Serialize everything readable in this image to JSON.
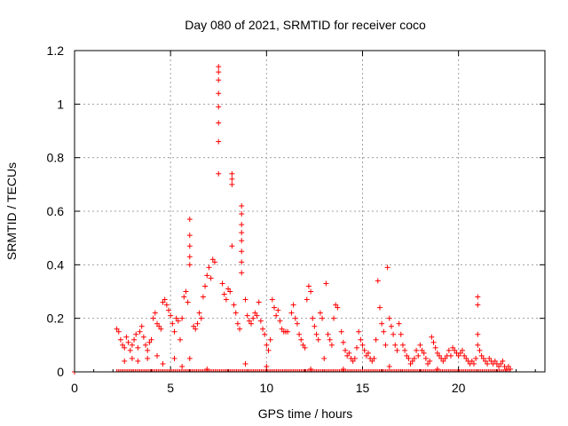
{
  "chart_data": {
    "type": "scatter",
    "title": "Day 080 of 2021, SRMTID for receiver coco",
    "xlabel": "GPS time / hours",
    "ylabel": "SRMTID / TECUs",
    "xlim": [
      0,
      24.5
    ],
    "ylim": [
      0,
      1.2
    ],
    "xticks": [
      0,
      5,
      10,
      15,
      20
    ],
    "yticks": [
      0,
      0.2,
      0.4,
      0.6,
      0.8,
      1,
      1.2
    ],
    "ytick_labels": [
      "0",
      "0.2",
      "0.4",
      "0.6",
      "0.8",
      "1",
      "1.2"
    ],
    "grid": true,
    "marker": "+",
    "series": [
      {
        "name": "SRMTID",
        "color": "#ff0000",
        "points": [
          [
            0.0,
            0.0
          ],
          [
            2.2,
            0.16
          ],
          [
            2.3,
            0.15
          ],
          [
            2.4,
            0.12
          ],
          [
            2.5,
            0.1
          ],
          [
            2.6,
            0.09
          ],
          [
            2.7,
            0.13
          ],
          [
            2.8,
            0.11
          ],
          [
            2.9,
            0.08
          ],
          [
            3.0,
            0.1
          ],
          [
            3.1,
            0.12
          ],
          [
            3.2,
            0.14
          ],
          [
            3.3,
            0.09
          ],
          [
            3.4,
            0.15
          ],
          [
            3.5,
            0.17
          ],
          [
            3.6,
            0.13
          ],
          [
            3.7,
            0.1
          ],
          [
            3.8,
            0.08
          ],
          [
            3.9,
            0.11
          ],
          [
            4.0,
            0.12
          ],
          [
            2.6,
            0.04
          ],
          [
            3.0,
            0.05
          ],
          [
            3.3,
            0.04
          ],
          [
            3.8,
            0.05
          ],
          [
            4.3,
            0.06
          ],
          [
            4.6,
            0.03
          ],
          [
            5.2,
            0.05
          ],
          [
            4.1,
            0.2
          ],
          [
            4.2,
            0.22
          ],
          [
            4.3,
            0.18
          ],
          [
            4.4,
            0.17
          ],
          [
            4.5,
            0.16
          ],
          [
            4.6,
            0.26
          ],
          [
            4.7,
            0.27
          ],
          [
            4.8,
            0.25
          ],
          [
            4.9,
            0.23
          ],
          [
            5.0,
            0.21
          ],
          [
            5.1,
            0.18
          ],
          [
            5.2,
            0.15
          ],
          [
            5.3,
            0.2
          ],
          [
            5.4,
            0.19
          ],
          [
            5.5,
            0.12
          ],
          [
            5.6,
            0.2
          ],
          [
            5.7,
            0.28
          ],
          [
            5.8,
            0.3
          ],
          [
            5.9,
            0.26
          ],
          [
            6.0,
            0.57
          ],
          [
            6.0,
            0.51
          ],
          [
            6.0,
            0.47
          ],
          [
            6.0,
            0.43
          ],
          [
            6.0,
            0.4
          ],
          [
            6.0,
            0.05
          ],
          [
            6.2,
            0.17
          ],
          [
            6.3,
            0.16
          ],
          [
            6.4,
            0.18
          ],
          [
            6.5,
            0.22
          ],
          [
            6.6,
            0.2
          ],
          [
            6.7,
            0.28
          ],
          [
            6.8,
            0.32
          ],
          [
            6.9,
            0.36
          ],
          [
            7.0,
            0.39
          ],
          [
            7.1,
            0.35
          ],
          [
            7.2,
            0.42
          ],
          [
            7.3,
            0.41
          ],
          [
            7.5,
            1.14
          ],
          [
            7.5,
            1.12
          ],
          [
            7.5,
            1.09
          ],
          [
            7.5,
            1.04
          ],
          [
            7.5,
            0.99
          ],
          [
            7.5,
            0.93
          ],
          [
            7.5,
            0.86
          ],
          [
            7.5,
            0.74
          ],
          [
            7.7,
            0.33
          ],
          [
            7.8,
            0.29
          ],
          [
            7.9,
            0.27
          ],
          [
            8.0,
            0.31
          ],
          [
            8.1,
            0.3
          ],
          [
            8.2,
            0.74
          ],
          [
            8.2,
            0.72
          ],
          [
            8.2,
            0.7
          ],
          [
            8.2,
            0.47
          ],
          [
            8.3,
            0.25
          ],
          [
            8.4,
            0.22
          ],
          [
            8.5,
            0.18
          ],
          [
            8.6,
            0.16
          ],
          [
            8.7,
            0.62
          ],
          [
            8.7,
            0.59
          ],
          [
            8.7,
            0.55
          ],
          [
            8.7,
            0.52
          ],
          [
            8.7,
            0.49
          ],
          [
            8.7,
            0.45
          ],
          [
            8.7,
            0.41
          ],
          [
            8.7,
            0.37
          ],
          [
            8.9,
            0.27
          ],
          [
            9.0,
            0.21
          ],
          [
            9.1,
            0.19
          ],
          [
            9.2,
            0.18
          ],
          [
            9.3,
            0.2
          ],
          [
            9.4,
            0.22
          ],
          [
            9.5,
            0.21
          ],
          [
            9.6,
            0.26
          ],
          [
            9.7,
            0.19
          ],
          [
            9.8,
            0.16
          ],
          [
            9.9,
            0.14
          ],
          [
            10.0,
            0.1
          ],
          [
            10.1,
            0.08
          ],
          [
            10.2,
            0.12
          ],
          [
            10.3,
            0.27
          ],
          [
            10.4,
            0.24
          ],
          [
            10.5,
            0.21
          ],
          [
            10.6,
            0.23
          ],
          [
            10.7,
            0.19
          ],
          [
            10.8,
            0.16
          ],
          [
            10.9,
            0.15
          ],
          [
            11.0,
            0.15
          ],
          [
            11.1,
            0.15
          ],
          [
            11.3,
            0.22
          ],
          [
            11.4,
            0.25
          ],
          [
            11.5,
            0.2
          ],
          [
            11.6,
            0.18
          ],
          [
            11.7,
            0.14
          ],
          [
            11.8,
            0.12
          ],
          [
            11.9,
            0.1
          ],
          [
            12.0,
            0.09
          ],
          [
            12.1,
            0.27
          ],
          [
            12.2,
            0.32
          ],
          [
            12.3,
            0.3
          ],
          [
            12.4,
            0.2
          ],
          [
            12.5,
            0.17
          ],
          [
            12.6,
            0.14
          ],
          [
            12.7,
            0.12
          ],
          [
            12.8,
            0.22
          ],
          [
            12.9,
            0.2
          ],
          [
            13.0,
            0.05
          ],
          [
            13.1,
            0.33
          ],
          [
            13.2,
            0.14
          ],
          [
            13.3,
            0.12
          ],
          [
            13.4,
            0.1
          ],
          [
            13.5,
            0.2
          ],
          [
            13.6,
            0.25
          ],
          [
            13.7,
            0.24
          ],
          [
            13.9,
            0.15
          ],
          [
            14.0,
            0.11
          ],
          [
            14.1,
            0.08
          ],
          [
            14.2,
            0.06
          ],
          [
            14.3,
            0.07
          ],
          [
            14.4,
            0.05
          ],
          [
            14.5,
            0.04
          ],
          [
            14.6,
            0.05
          ],
          [
            14.7,
            0.09
          ],
          [
            14.8,
            0.15
          ],
          [
            14.9,
            0.12
          ],
          [
            15.0,
            0.1
          ],
          [
            15.1,
            0.08
          ],
          [
            15.2,
            0.06
          ],
          [
            15.3,
            0.07
          ],
          [
            15.4,
            0.05
          ],
          [
            15.5,
            0.04
          ],
          [
            15.6,
            0.05
          ],
          [
            15.7,
            0.12
          ],
          [
            15.8,
            0.34
          ],
          [
            15.9,
            0.24
          ],
          [
            16.0,
            0.18
          ],
          [
            16.1,
            0.15
          ],
          [
            16.2,
            0.1
          ],
          [
            16.3,
            0.39
          ],
          [
            16.4,
            0.2
          ],
          [
            16.5,
            0.17
          ],
          [
            16.6,
            0.14
          ],
          [
            16.7,
            0.1
          ],
          [
            16.8,
            0.08
          ],
          [
            16.9,
            0.18
          ],
          [
            17.0,
            0.14
          ],
          [
            17.1,
            0.1
          ],
          [
            17.2,
            0.08
          ],
          [
            17.3,
            0.06
          ],
          [
            17.4,
            0.05
          ],
          [
            17.5,
            0.03
          ],
          [
            17.6,
            0.04
          ],
          [
            17.7,
            0.05
          ],
          [
            17.8,
            0.08
          ],
          [
            17.9,
            0.06
          ],
          [
            18.0,
            0.1
          ],
          [
            18.1,
            0.08
          ],
          [
            18.2,
            0.07
          ],
          [
            18.3,
            0.05
          ],
          [
            18.4,
            0.03
          ],
          [
            18.5,
            0.04
          ],
          [
            18.6,
            0.13
          ],
          [
            18.7,
            0.11
          ],
          [
            18.8,
            0.09
          ],
          [
            18.9,
            0.07
          ],
          [
            19.0,
            0.06
          ],
          [
            19.1,
            0.05
          ],
          [
            19.2,
            0.04
          ],
          [
            19.3,
            0.05
          ],
          [
            19.4,
            0.06
          ],
          [
            19.5,
            0.08
          ],
          [
            19.6,
            0.06
          ],
          [
            19.7,
            0.09
          ],
          [
            19.8,
            0.08
          ],
          [
            19.9,
            0.07
          ],
          [
            20.0,
            0.06
          ],
          [
            20.1,
            0.07
          ],
          [
            20.2,
            0.08
          ],
          [
            20.3,
            0.06
          ],
          [
            20.4,
            0.05
          ],
          [
            20.5,
            0.04
          ],
          [
            20.6,
            0.03
          ],
          [
            20.7,
            0.04
          ],
          [
            20.8,
            0.03
          ],
          [
            20.9,
            0.05
          ],
          [
            21.0,
            0.28
          ],
          [
            21.0,
            0.25
          ],
          [
            21.0,
            0.14
          ],
          [
            21.0,
            0.1
          ],
          [
            21.1,
            0.08
          ],
          [
            21.2,
            0.06
          ],
          [
            21.3,
            0.05
          ],
          [
            21.4,
            0.04
          ],
          [
            21.5,
            0.03
          ],
          [
            21.6,
            0.05
          ],
          [
            21.7,
            0.04
          ],
          [
            21.8,
            0.03
          ],
          [
            21.9,
            0.04
          ],
          [
            22.0,
            0.03
          ],
          [
            22.1,
            0.02
          ],
          [
            22.2,
            0.03
          ],
          [
            22.3,
            0.04
          ],
          [
            22.4,
            0.02
          ],
          [
            22.5,
            0.01
          ],
          [
            22.6,
            0.02
          ],
          [
            22.7,
            0.01
          ],
          [
            5.6,
            0.02
          ],
          [
            6.9,
            0.01
          ],
          [
            8.9,
            0.03
          ],
          [
            10.0,
            0.02
          ],
          [
            12.3,
            0.01
          ],
          [
            14.0,
            0.01
          ],
          [
            16.4,
            0.02
          ],
          [
            18.9,
            0.01
          ]
        ]
      }
    ]
  }
}
